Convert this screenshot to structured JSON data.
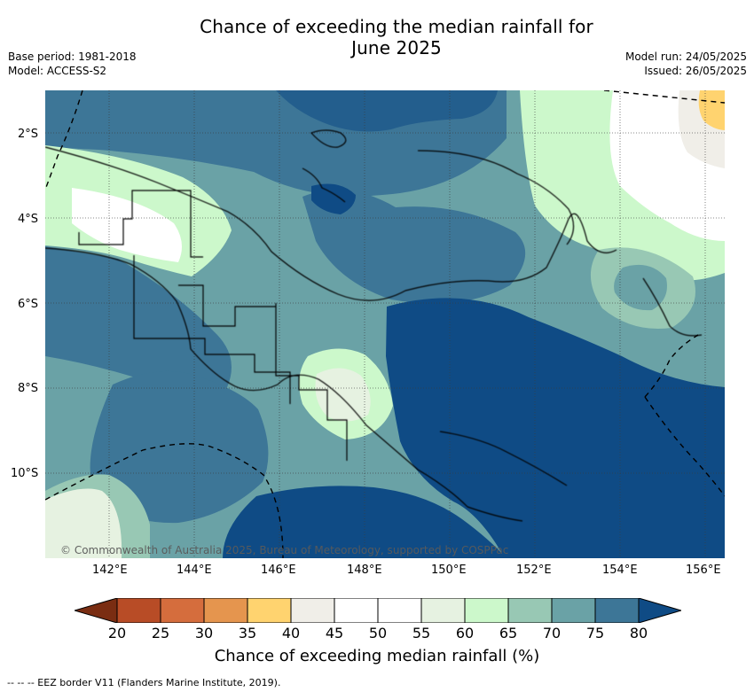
{
  "title_line1": "Chance of exceeding the median rainfall for",
  "title_line2": "June 2025",
  "meta": {
    "base_period": "Base period: 1981-2018",
    "model": "Model: ACCESS-S2",
    "model_run": "Model run: 24/05/2025",
    "issued": "Issued: 26/05/2025"
  },
  "latitude_labels": [
    "2°S",
    "4°S",
    "6°S",
    "8°S",
    "10°S"
  ],
  "longitude_labels": [
    "142°E",
    "144°E",
    "146°E",
    "148°E",
    "150°E",
    "152°E",
    "154°E",
    "156°E"
  ],
  "copyright": "© Commonwealth of Australia 2025, Bureau of Meteorology, supported by COSPPac",
  "colorbar": {
    "ticks": [
      "20",
      "25",
      "30",
      "35",
      "40",
      "45",
      "50",
      "55",
      "60",
      "65",
      "70",
      "75",
      "80"
    ],
    "colors": [
      "#7a2d12",
      "#b84c26",
      "#d56d3d",
      "#e5954e",
      "#ffd36f",
      "#f0eee8",
      "#ffffff",
      "#ffffff",
      "#e6f2e1",
      "#ccf8cb",
      "#98c8b4",
      "#6aa2a6",
      "#3d7697",
      "#0f4b85"
    ],
    "label": "Chance of exceeding median rainfall (%)"
  },
  "footer": "--  --  -- EEZ border V11 (Flanders Marine Institute, 2019)."
}
